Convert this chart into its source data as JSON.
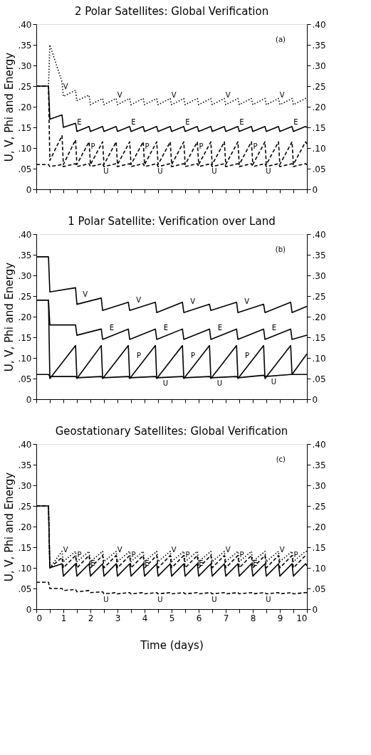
{
  "chart_data": [
    {
      "type": "line",
      "title": "2 Polar Satellites: Global Verification",
      "ylabel": "U, V, Phi and Energy",
      "annotations": [
        "(a)"
      ],
      "tick_labels": "y",
      "x": [
        0,
        0.45,
        0.5,
        0.95,
        1,
        1.45,
        1.5,
        1.95,
        2,
        2.45,
        2.5,
        2.95,
        3,
        3.45,
        3.5,
        3.95,
        4,
        4.45,
        4.5,
        4.95,
        5,
        5.45,
        5.5,
        5.95,
        6,
        6.45,
        6.5,
        6.95,
        7,
        7.45,
        7.5,
        7.95,
        8,
        8.45,
        8.5,
        8.95,
        9,
        9.45,
        9.5,
        9.95,
        10
      ],
      "xlim": [
        0,
        10
      ],
      "xticks": [
        0,
        {
          "value": 0.5,
          "label": null
        },
        1,
        {
          "value": 1.5,
          "label": null
        },
        2,
        {
          "value": 2.5,
          "label": null
        },
        3,
        {
          "value": 3.5,
          "label": null
        },
        4,
        {
          "value": 4.5,
          "label": null
        },
        5,
        {
          "value": 5.5,
          "label": null
        },
        6,
        {
          "value": 6.5,
          "label": null
        },
        7,
        {
          "value": 7.5,
          "label": null
        },
        8,
        {
          "value": 8.5,
          "label": null
        },
        9,
        {
          "value": 9.5,
          "label": null
        },
        10
      ],
      "ylim": [
        0,
        0.4
      ],
      "yticks": [
        {
          "value": 0,
          "label": "0"
        },
        {
          "value": 0.05,
          "label": ".05"
        },
        {
          "value": 0.1,
          "label": ".10"
        },
        {
          "value": 0.15,
          "label": ".15"
        },
        {
          "value": 0.2,
          "label": ".20"
        },
        {
          "value": 0.25,
          "label": ".25"
        },
        {
          "value": 0.3,
          "label": ".30"
        },
        {
          "value": 0.35,
          "label": ".35"
        },
        {
          "value": 0.4,
          "label": ".40"
        }
      ],
      "y2lim": [
        0,
        0.4
      ],
      "y2ticks": [
        {
          "value": 0,
          "label": "0"
        },
        {
          "value": 0.05,
          "label": ".05"
        },
        {
          "value": 0.1,
          "label": ".10"
        },
        {
          "value": 0.15,
          "label": ".15"
        },
        {
          "value": 0.2,
          "label": ".20"
        },
        {
          "value": 0.25,
          "label": ".25"
        },
        {
          "value": 0.3,
          "label": ".30"
        },
        {
          "value": 0.35,
          "label": ".35"
        },
        {
          "value": 0.4,
          "label": ".40"
        }
      ],
      "series": [
        {
          "name": "V",
          "color": "#000000",
          "line_style": "dotted",
          "values": [
            0.25,
            0.25,
            0.35,
            0.26,
            0.225,
            0.24,
            0.215,
            0.228,
            0.205,
            0.22,
            0.205,
            0.22,
            0.205,
            0.22,
            0.205,
            0.22,
            0.205,
            0.22,
            0.205,
            0.22,
            0.205,
            0.22,
            0.205,
            0.22,
            0.205,
            0.22,
            0.205,
            0.22,
            0.205,
            0.22,
            0.205,
            0.22,
            0.205,
            0.22,
            0.205,
            0.22,
            0.205,
            0.22,
            0.205,
            0.22,
            0.215
          ]
        },
        {
          "name": "E",
          "color": "#000000",
          "line_style": "solid",
          "values": [
            0.25,
            0.25,
            0.17,
            0.18,
            0.15,
            0.16,
            0.14,
            0.152,
            0.14,
            0.152,
            0.14,
            0.152,
            0.14,
            0.152,
            0.14,
            0.152,
            0.14,
            0.152,
            0.14,
            0.152,
            0.14,
            0.152,
            0.14,
            0.152,
            0.14,
            0.152,
            0.14,
            0.152,
            0.14,
            0.152,
            0.14,
            0.152,
            0.14,
            0.152,
            0.14,
            0.152,
            0.14,
            0.152,
            0.14,
            0.152,
            0.15
          ]
        },
        {
          "name": "P",
          "color": "#000000",
          "line_style": "dashed",
          "values": [
            0.25,
            0.25,
            0.07,
            0.13,
            0.06,
            0.12,
            0.06,
            0.115,
            0.06,
            0.115,
            0.06,
            0.115,
            0.06,
            0.115,
            0.06,
            0.115,
            0.06,
            0.115,
            0.06,
            0.115,
            0.06,
            0.115,
            0.06,
            0.115,
            0.06,
            0.115,
            0.06,
            0.115,
            0.06,
            0.115,
            0.06,
            0.115,
            0.06,
            0.115,
            0.06,
            0.115,
            0.06,
            0.115,
            0.06,
            0.115,
            0.11
          ]
        },
        {
          "name": "U",
          "color": "#000000",
          "line_style": "dashed",
          "values": [
            0.06,
            0.06,
            0.055,
            0.06,
            0.055,
            0.062,
            0.055,
            0.062,
            0.055,
            0.062,
            0.055,
            0.062,
            0.055,
            0.062,
            0.055,
            0.062,
            0.055,
            0.062,
            0.055,
            0.062,
            0.055,
            0.062,
            0.055,
            0.062,
            0.055,
            0.062,
            0.055,
            0.062,
            0.055,
            0.062,
            0.055,
            0.062,
            0.055,
            0.062,
            0.055,
            0.062,
            0.055,
            0.062,
            0.055,
            0.062,
            0.06
          ]
        }
      ]
    },
    {
      "type": "line",
      "title": "1 Polar Satellite: Verification over Land",
      "ylabel": "U, V, Phi and Energy",
      "annotations": [
        "(b)"
      ],
      "tick_labels": "y",
      "x": [
        0,
        0.45,
        0.5,
        1.45,
        1.5,
        2.4,
        2.45,
        3.4,
        3.45,
        4.4,
        4.45,
        5.4,
        5.45,
        6.4,
        6.45,
        7.4,
        7.45,
        8.4,
        8.45,
        9.4,
        9.45,
        10
      ],
      "xlim": [
        0,
        10
      ],
      "xticks": [
        0,
        {
          "value": 0.5,
          "label": null
        },
        1,
        {
          "value": 1.5,
          "label": null
        },
        2,
        {
          "value": 2.5,
          "label": null
        },
        3,
        {
          "value": 3.5,
          "label": null
        },
        4,
        {
          "value": 4.5,
          "label": null
        },
        5,
        {
          "value": 5.5,
          "label": null
        },
        6,
        {
          "value": 6.5,
          "label": null
        },
        7,
        {
          "value": 7.5,
          "label": null
        },
        8,
        {
          "value": 8.5,
          "label": null
        },
        9,
        {
          "value": 9.5,
          "label": null
        },
        10
      ],
      "ylim": [
        0,
        0.4
      ],
      "yticks": [
        {
          "value": 0,
          "label": "0"
        },
        {
          "value": 0.05,
          "label": ".05"
        },
        {
          "value": 0.1,
          "label": ".10"
        },
        {
          "value": 0.15,
          "label": ".15"
        },
        {
          "value": 0.2,
          "label": ".20"
        },
        {
          "value": 0.25,
          "label": ".25"
        },
        {
          "value": 0.3,
          "label": ".30"
        },
        {
          "value": 0.35,
          "label": ".35"
        },
        {
          "value": 0.4,
          "label": ".40"
        }
      ],
      "y2lim": [
        0,
        0.4
      ],
      "y2ticks": [
        {
          "value": 0,
          "label": "0"
        },
        {
          "value": 0.05,
          "label": ".05"
        },
        {
          "value": 0.1,
          "label": ".10"
        },
        {
          "value": 0.15,
          "label": ".15"
        },
        {
          "value": 0.2,
          "label": ".20"
        },
        {
          "value": 0.25,
          "label": ".25"
        },
        {
          "value": 0.3,
          "label": ".30"
        },
        {
          "value": 0.35,
          "label": ".35"
        },
        {
          "value": 0.4,
          "label": ".40"
        }
      ],
      "series": [
        {
          "name": "V",
          "color": "#000000",
          "line_style": "solid",
          "values": [
            0.345,
            0.345,
            0.26,
            0.27,
            0.23,
            0.245,
            0.215,
            0.235,
            0.215,
            0.235,
            0.21,
            0.235,
            0.21,
            0.23,
            0.215,
            0.235,
            0.21,
            0.23,
            0.21,
            0.235,
            0.21,
            0.225
          ]
        },
        {
          "name": "E",
          "color": "#000000",
          "line_style": "solid",
          "values": [
            0.24,
            0.24,
            0.18,
            0.18,
            0.155,
            0.17,
            0.145,
            0.17,
            0.145,
            0.17,
            0.145,
            0.17,
            0.145,
            0.17,
            0.145,
            0.17,
            0.145,
            0.17,
            0.145,
            0.17,
            0.145,
            0.155
          ]
        },
        {
          "name": "P",
          "color": "#000000",
          "line_style": "solid",
          "values": [
            0.24,
            0.24,
            0.05,
            0.13,
            0.05,
            0.13,
            0.05,
            0.13,
            0.05,
            0.13,
            0.05,
            0.13,
            0.05,
            0.13,
            0.05,
            0.13,
            0.05,
            0.13,
            0.05,
            0.13,
            0.06,
            0.11
          ]
        },
        {
          "name": "U",
          "color": "#000000",
          "line_style": "solid",
          "values": [
            0.06,
            0.06,
            0.055,
            0.055,
            0.052,
            0.055,
            0.052,
            0.055,
            0.052,
            0.055,
            0.052,
            0.055,
            0.052,
            0.055,
            0.052,
            0.055,
            0.052,
            0.058,
            0.055,
            0.06,
            0.06,
            0.06
          ]
        }
      ]
    },
    {
      "type": "line",
      "title": "Geostationary Satellites: Global Verification",
      "ylabel": "U, V, Phi and Energy",
      "xlabel": "Time (days)",
      "annotations": [
        "(c)"
      ],
      "x": [
        0,
        0.45,
        0.5,
        0.95,
        1,
        1.45,
        1.5,
        1.95,
        2,
        2.45,
        2.5,
        2.95,
        3,
        3.45,
        3.5,
        3.95,
        4,
        4.45,
        4.5,
        4.95,
        5,
        5.45,
        5.5,
        5.95,
        6,
        6.45,
        6.5,
        6.95,
        7,
        7.45,
        7.5,
        7.95,
        8,
        8.45,
        8.5,
        8.95,
        9,
        9.45,
        9.5,
        9.95,
        10
      ],
      "xlim": [
        0,
        10
      ],
      "xticks": [
        0,
        {
          "value": 0.5,
          "label": null
        },
        1,
        {
          "value": 1.5,
          "label": null
        },
        2,
        {
          "value": 2.5,
          "label": null
        },
        3,
        {
          "value": 3.5,
          "label": null
        },
        4,
        {
          "value": 4.5,
          "label": null
        },
        5,
        {
          "value": 5.5,
          "label": null
        },
        6,
        {
          "value": 6.5,
          "label": null
        },
        7,
        {
          "value": 7.5,
          "label": null
        },
        8,
        {
          "value": 8.5,
          "label": null
        },
        9,
        {
          "value": 9.5,
          "label": null
        },
        10
      ],
      "ylim": [
        0,
        0.4
      ],
      "yticks": [
        {
          "value": 0,
          "label": "0"
        },
        {
          "value": 0.05,
          "label": ".05"
        },
        {
          "value": 0.1,
          "label": ".10"
        },
        {
          "value": 0.15,
          "label": ".15"
        },
        {
          "value": 0.2,
          "label": ".20"
        },
        {
          "value": 0.25,
          "label": ".25"
        },
        {
          "value": 0.3,
          "label": ".30"
        },
        {
          "value": 0.35,
          "label": ".35"
        },
        {
          "value": 0.4,
          "label": ".40"
        }
      ],
      "y2lim": [
        0,
        0.4
      ],
      "y2ticks": [
        {
          "value": 0,
          "label": "0"
        },
        {
          "value": 0.05,
          "label": ".05"
        },
        {
          "value": 0.1,
          "label": ".10"
        },
        {
          "value": 0.15,
          "label": ".15"
        },
        {
          "value": 0.2,
          "label": ".20"
        },
        {
          "value": 0.25,
          "label": ".25"
        },
        {
          "value": 0.3,
          "label": ".30"
        },
        {
          "value": 0.35,
          "label": ".35"
        },
        {
          "value": 0.4,
          "label": ".40"
        }
      ],
      "series": [
        {
          "name": "V",
          "color": "#000000",
          "line_style": "dotted",
          "values": [
            0.25,
            0.25,
            0.1,
            0.14,
            0.115,
            0.14,
            0.115,
            0.14,
            0.115,
            0.14,
            0.115,
            0.14,
            0.115,
            0.14,
            0.115,
            0.14,
            0.115,
            0.14,
            0.115,
            0.14,
            0.115,
            0.14,
            0.115,
            0.14,
            0.115,
            0.14,
            0.115,
            0.14,
            0.115,
            0.14,
            0.115,
            0.14,
            0.115,
            0.14,
            0.115,
            0.14,
            0.115,
            0.14,
            0.115,
            0.14,
            0.14
          ]
        },
        {
          "name": "P",
          "color": "#000000",
          "line_style": "dashed",
          "values": [
            0.25,
            0.25,
            0.1,
            0.125,
            0.1,
            0.13,
            0.1,
            0.13,
            0.1,
            0.13,
            0.1,
            0.13,
            0.1,
            0.13,
            0.1,
            0.13,
            0.1,
            0.13,
            0.1,
            0.13,
            0.1,
            0.13,
            0.1,
            0.13,
            0.1,
            0.13,
            0.1,
            0.13,
            0.1,
            0.13,
            0.1,
            0.13,
            0.1,
            0.13,
            0.1,
            0.13,
            0.1,
            0.13,
            0.1,
            0.13,
            0.13
          ]
        },
        {
          "name": "E",
          "color": "#000000",
          "line_style": "solid",
          "values": [
            0.25,
            0.25,
            0.1,
            0.11,
            0.08,
            0.11,
            0.08,
            0.11,
            0.08,
            0.11,
            0.08,
            0.11,
            0.08,
            0.11,
            0.08,
            0.11,
            0.08,
            0.11,
            0.08,
            0.11,
            0.08,
            0.11,
            0.08,
            0.11,
            0.08,
            0.11,
            0.08,
            0.11,
            0.08,
            0.11,
            0.08,
            0.11,
            0.08,
            0.11,
            0.08,
            0.11,
            0.08,
            0.11,
            0.08,
            0.11,
            0.105
          ]
        },
        {
          "name": "U",
          "color": "#000000",
          "line_style": "dashed",
          "values": [
            0.065,
            0.065,
            0.05,
            0.05,
            0.045,
            0.048,
            0.042,
            0.045,
            0.04,
            0.042,
            0.037,
            0.04,
            0.037,
            0.04,
            0.037,
            0.04,
            0.037,
            0.04,
            0.037,
            0.04,
            0.037,
            0.04,
            0.037,
            0.04,
            0.037,
            0.04,
            0.037,
            0.04,
            0.037,
            0.04,
            0.037,
            0.04,
            0.037,
            0.04,
            0.037,
            0.04,
            0.037,
            0.04,
            0.037,
            0.04,
            0.04
          ]
        }
      ]
    }
  ]
}
